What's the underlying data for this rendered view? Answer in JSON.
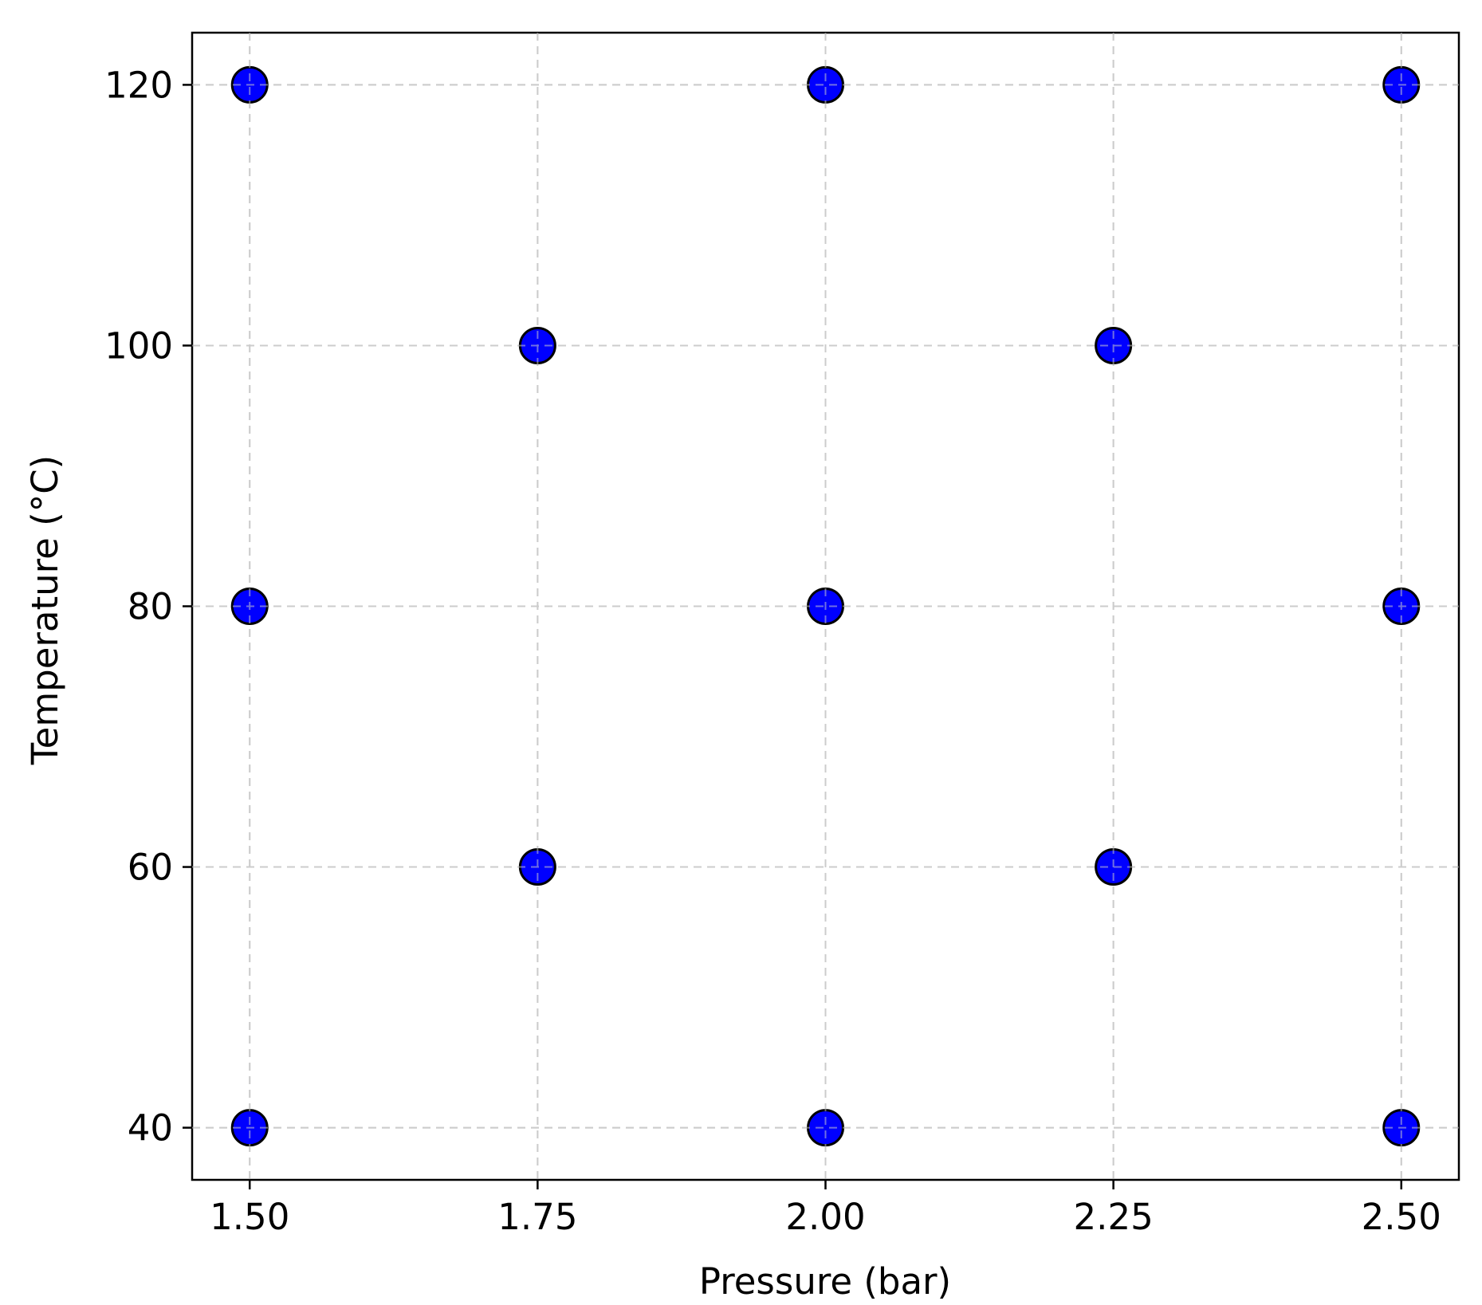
{
  "chart_data": {
    "type": "scatter",
    "title": "",
    "xlabel": "Pressure (bar)",
    "ylabel": "Temperature (°C)",
    "xlim": [
      1.45,
      2.55
    ],
    "ylim": [
      36,
      124
    ],
    "xticks": [
      1.5,
      1.75,
      2.0,
      2.25,
      2.5
    ],
    "xtick_labels": [
      "1.50",
      "1.75",
      "2.00",
      "2.25",
      "2.50"
    ],
    "yticks": [
      40,
      60,
      80,
      100,
      120
    ],
    "ytick_labels": [
      "40",
      "60",
      "80",
      "100",
      "120"
    ],
    "grid": true,
    "marker_color": "#0000ff",
    "marker_edge_color": "#000000",
    "grid_color": "#cccccc",
    "points": [
      {
        "x": 1.5,
        "y": 120
      },
      {
        "x": 2.0,
        "y": 120
      },
      {
        "x": 2.5,
        "y": 120
      },
      {
        "x": 1.75,
        "y": 100
      },
      {
        "x": 2.25,
        "y": 100
      },
      {
        "x": 1.5,
        "y": 80
      },
      {
        "x": 2.0,
        "y": 80
      },
      {
        "x": 2.5,
        "y": 80
      },
      {
        "x": 1.75,
        "y": 60
      },
      {
        "x": 2.25,
        "y": 60
      },
      {
        "x": 1.5,
        "y": 40
      },
      {
        "x": 2.0,
        "y": 40
      },
      {
        "x": 2.5,
        "y": 40
      }
    ]
  }
}
